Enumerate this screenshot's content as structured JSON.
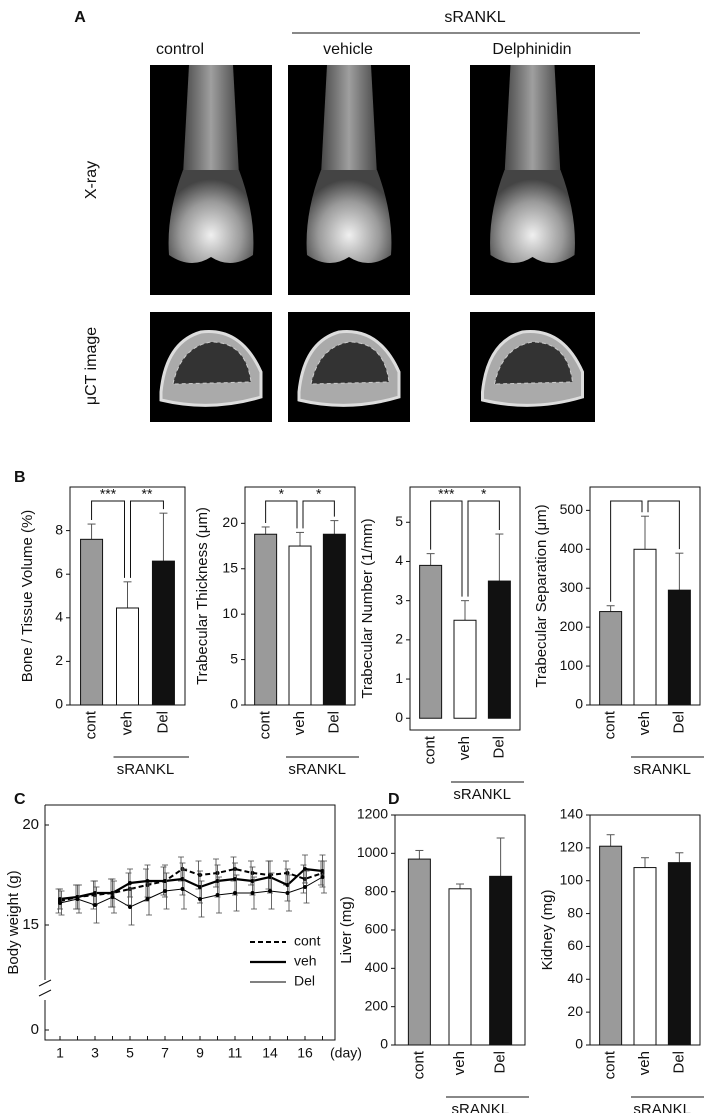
{
  "panel_a": {
    "letter": "A",
    "group": "sRANKL",
    "columns": [
      "control",
      "vehicle",
      "Delphinidin"
    ],
    "rows": [
      "X-ray",
      "μCT image"
    ]
  },
  "panel_letters": {
    "b": "B",
    "c": "C",
    "d": "D"
  },
  "chart_data": [
    {
      "type": "bar",
      "ylabel": "Bone / Tissue Volume (%)",
      "categories": [
        "cont",
        "veh",
        "Del"
      ],
      "group_label": "sRANKL",
      "colors": [
        "#9a9a9a",
        "#ffffff",
        "#111111"
      ],
      "values": [
        7.6,
        4.45,
        6.6
      ],
      "errors": [
        0.7,
        1.2,
        2.2
      ],
      "ylim": [
        0,
        10
      ],
      "yticks": [
        0,
        2,
        4,
        6,
        8
      ],
      "annotations": [
        "***",
        "**"
      ]
    },
    {
      "type": "bar",
      "ylabel": "Trabecular Thickness (μm)",
      "categories": [
        "cont",
        "veh",
        "Del"
      ],
      "group_label": "sRANKL",
      "colors": [
        "#9a9a9a",
        "#ffffff",
        "#111111"
      ],
      "values": [
        18.8,
        17.5,
        18.8
      ],
      "errors": [
        0.8,
        1.5,
        1.5
      ],
      "ylim": [
        0,
        24
      ],
      "yticks": [
        0,
        5,
        10,
        15,
        20
      ],
      "annotations": [
        "*",
        "*"
      ]
    },
    {
      "type": "bar",
      "ylabel": "Trabecular Number (1/mm)",
      "categories": [
        "cont",
        "veh",
        "Del"
      ],
      "group_label": "sRANKL",
      "colors": [
        "#9a9a9a",
        "#ffffff",
        "#111111"
      ],
      "values": [
        3.9,
        2.5,
        3.5
      ],
      "errors": [
        0.3,
        0.5,
        1.2
      ],
      "ylim": [
        -0.3,
        5.9
      ],
      "yticks": [
        0,
        1,
        2,
        3,
        4,
        5
      ],
      "annotations": [
        "***",
        "*"
      ]
    },
    {
      "type": "bar",
      "ylabel": "Trabecular Separation (μm)",
      "categories": [
        "cont",
        "veh",
        "Del"
      ],
      "group_label": "sRANKL",
      "colors": [
        "#9a9a9a",
        "#ffffff",
        "#111111"
      ],
      "values": [
        240,
        400,
        295
      ],
      "errors": [
        15,
        85,
        95
      ],
      "ylim": [
        0,
        560
      ],
      "yticks": [
        0,
        100,
        200,
        300,
        400,
        500
      ],
      "brackets": true
    },
    {
      "type": "line",
      "ylabel": "Body weight (g)",
      "xlabel": "(day)",
      "categories": [
        "1",
        null,
        "3",
        null,
        "5",
        null,
        "7",
        null,
        "9",
        null,
        "11",
        null,
        "14",
        null,
        "16",
        null
      ],
      "ylim": [
        13,
        20
      ],
      "yticks": [
        15,
        20
      ],
      "ybreak_tick": 0,
      "legend": "lower right",
      "series": [
        {
          "name": "cont",
          "color": "#000000",
          "line_style": "dashed",
          "line_width": 2,
          "values": [
            16.2,
            16.4,
            16.5,
            16.6,
            16.8,
            17.0,
            17.2,
            17.8,
            17.5,
            17.6,
            17.8,
            17.6,
            17.5,
            17.6,
            17.3,
            17.6
          ],
          "errors": [
            0.6,
            0.6,
            0.7,
            0.7,
            0.8,
            0.8,
            0.7,
            0.6,
            0.7,
            0.7,
            0.6,
            0.6,
            0.7,
            0.6,
            0.7,
            0.6
          ]
        },
        {
          "name": "veh",
          "color": "#000000",
          "line_style": "solid",
          "line_width": 2.2,
          "values": [
            16.3,
            16.4,
            16.6,
            16.6,
            17.1,
            17.2,
            17.2,
            17.3,
            16.9,
            17.2,
            17.3,
            17.2,
            17.4,
            17.0,
            17.8,
            17.7
          ],
          "errors": [
            0.5,
            0.6,
            0.6,
            0.7,
            0.7,
            0.8,
            0.8,
            0.8,
            0.8,
            0.8,
            0.8,
            0.7,
            0.8,
            0.8,
            0.7,
            0.8
          ]
        },
        {
          "name": "Del",
          "color": "#000000",
          "line_style": "solid",
          "line_width": 1,
          "values": [
            16.1,
            16.3,
            16.0,
            16.4,
            15.9,
            16.3,
            16.7,
            16.8,
            16.3,
            16.5,
            16.6,
            16.6,
            16.7,
            16.6,
            16.9,
            17.4
          ],
          "errors": [
            0.6,
            0.7,
            0.9,
            0.8,
            0.9,
            0.8,
            0.9,
            1.0,
            0.9,
            0.9,
            0.9,
            0.8,
            0.9,
            0.9,
            0.8,
            0.8
          ]
        }
      ]
    },
    {
      "type": "bar",
      "ylabel": "Liver (mg)",
      "categories": [
        "cont",
        "veh",
        "Del"
      ],
      "group_label": "sRANKL",
      "colors": [
        "#9a9a9a",
        "#ffffff",
        "#111111"
      ],
      "values": [
        970,
        815,
        880
      ],
      "errors": [
        45,
        25,
        200
      ],
      "ylim": [
        0,
        1200
      ],
      "yticks": [
        0,
        200,
        400,
        600,
        800,
        1000,
        1200
      ]
    },
    {
      "type": "bar",
      "ylabel": "Kidney (mg)",
      "categories": [
        "cont",
        "veh",
        "Del"
      ],
      "group_label": "sRANKL",
      "colors": [
        "#9a9a9a",
        "#ffffff",
        "#111111"
      ],
      "values": [
        121,
        108,
        111
      ],
      "errors": [
        7,
        6,
        6
      ],
      "ylim": [
        0,
        140
      ],
      "yticks": [
        0,
        20,
        40,
        60,
        80,
        100,
        120,
        140
      ]
    }
  ]
}
